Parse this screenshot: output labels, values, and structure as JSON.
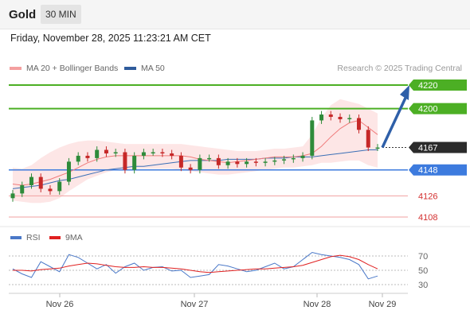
{
  "header": {
    "instrument": "Gold",
    "timeframe": "30 MIN"
  },
  "timestamp": "Friday, November 28, 2025 11:23:21 AM CET",
  "legend": {
    "ma20_label": "MA 20 + Bollinger Bands",
    "ma50_label": "MA 50",
    "credit": "Research © 2025 Trading Central"
  },
  "rsi_legend": {
    "rsi_label": "RSI",
    "ma9_label": "9MA"
  },
  "colors": {
    "resistance": "#4caf24",
    "support": "#3d7bde",
    "weak_support": "#e53935",
    "current": "#2b2b2b",
    "ma20": "#f07c7c",
    "ma50": "#3b6fb6",
    "band_fill": "#fde2e2",
    "candle_up": "#2e8b3a",
    "candle_down": "#c62828",
    "arrow": "#2e5fa8"
  },
  "chart_data": [
    {
      "type": "line",
      "title": "",
      "note": "candlestick price chart",
      "ylim": [
        4100,
        4230
      ],
      "x_tick_labels": [
        "Nov 26",
        "Nov 27",
        "Nov 28",
        "Nov 29"
      ],
      "levels": [
        {
          "value": 4220,
          "label": "4220",
          "kind": "resistance"
        },
        {
          "value": 4200,
          "label": "4200",
          "kind": "resistance"
        },
        {
          "value": 4167,
          "label": "4167",
          "kind": "current"
        },
        {
          "value": 4148,
          "label": "4148",
          "kind": "support"
        },
        {
          "value": 4126,
          "label": "4126",
          "kind": "weak_support"
        },
        {
          "value": 4108,
          "label": "4108",
          "kind": "weak_support"
        }
      ],
      "series": [
        {
          "name": "MA 20 + Bollinger Bands",
          "values": [
            4136,
            4135,
            4136,
            4138,
            4140,
            4143,
            4146,
            4150,
            4154,
            4157,
            4159,
            4160,
            4160,
            4160,
            4160,
            4160,
            4160,
            4160,
            4160,
            4159,
            4157,
            4156,
            4155,
            4154,
            4155,
            4156,
            4157,
            4158,
            4159,
            4159,
            4159,
            4160,
            4162,
            4168,
            4176,
            4183,
            4188,
            4190,
            4184,
            4178
          ]
        },
        {
          "name": "MA 50",
          "values": [
            4132,
            4133,
            4134,
            4135,
            4137,
            4139,
            4140,
            4142,
            4144,
            4146,
            4148,
            4149,
            4150,
            4151,
            4151,
            4152,
            4153,
            4154,
            4155,
            4156,
            4156,
            4156,
            4156,
            4157,
            4157,
            4157,
            4157,
            4158,
            4158,
            4158,
            4159,
            4159,
            4159,
            4160,
            4161,
            4162,
            4163,
            4164,
            4165,
            4165
          ]
        },
        {
          "name": "Upper band",
          "values": [
            4150,
            4149,
            4152,
            4158,
            4163,
            4167,
            4170,
            4172,
            4173,
            4173,
            4172,
            4171,
            4170,
            4170,
            4170,
            4170,
            4170,
            4170,
            4170,
            4169,
            4168,
            4167,
            4166,
            4165,
            4164,
            4164,
            4164,
            4165,
            4166,
            4166,
            4167,
            4168,
            4178,
            4192,
            4203,
            4208,
            4206,
            4204,
            4200,
            4196
          ]
        },
        {
          "name": "Lower band",
          "values": [
            4122,
            4121,
            4120,
            4120,
            4121,
            4124,
            4130,
            4135,
            4140,
            4143,
            4146,
            4148,
            4148,
            4149,
            4149,
            4149,
            4149,
            4149,
            4148,
            4147,
            4146,
            4145,
            4144,
            4144,
            4145,
            4146,
            4147,
            4148,
            4149,
            4150,
            4150,
            4151,
            4152,
            4154,
            4154,
            4155,
            4156,
            4156,
            4152,
            4150
          ]
        },
        {
          "name": "Close",
          "values": [
            4128,
            4135,
            4142,
            4132,
            4130,
            4138,
            4155,
            4160,
            4158,
            4165,
            4162,
            4163,
            4148,
            4160,
            4163,
            4163,
            4162,
            4160,
            4150,
            4148,
            4158,
            4158,
            4152,
            4155,
            4153,
            4155,
            4154,
            4155,
            4156,
            4157,
            4158,
            4160,
            4190,
            4195,
            4193,
            4191,
            4192,
            4182,
            4167,
            4167
          ]
        }
      ]
    },
    {
      "type": "line",
      "title": "",
      "ylim": [
        20,
        80
      ],
      "y_ticks": [
        70,
        50,
        30
      ],
      "series": [
        {
          "name": "RSI",
          "values": [
            52,
            45,
            40,
            62,
            55,
            48,
            72,
            68,
            60,
            52,
            58,
            46,
            55,
            60,
            50,
            54,
            55,
            49,
            50,
            40,
            42,
            44,
            58,
            56,
            52,
            48,
            50,
            55,
            60,
            52,
            55,
            65,
            75,
            72,
            70,
            68,
            65,
            58,
            38,
            42
          ]
        },
        {
          "name": "9MA",
          "values": [
            50,
            50,
            49,
            51,
            52,
            53,
            56,
            58,
            60,
            59,
            57,
            55,
            54,
            54,
            55,
            54,
            54,
            53,
            52,
            50,
            48,
            47,
            48,
            49,
            50,
            51,
            52,
            52,
            53,
            54,
            55,
            57,
            61,
            65,
            69,
            71,
            69,
            65,
            58,
            52
          ]
        }
      ]
    }
  ]
}
